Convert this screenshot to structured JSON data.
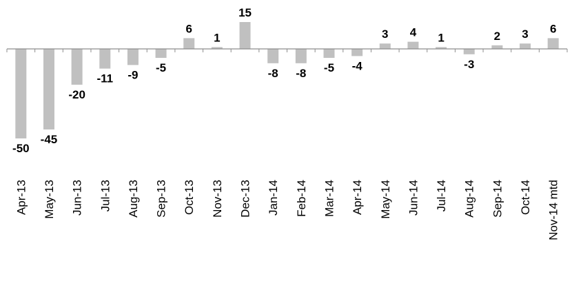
{
  "chart_data": {
    "type": "bar",
    "title": "",
    "xlabel": "",
    "ylabel": "",
    "categories": [
      "Apr-13",
      "May-13",
      "Jun-13",
      "Jul-13",
      "Aug-13",
      "Sep-13",
      "Oct-13",
      "Nov-13",
      "Dec-13",
      "Jan-14",
      "Feb-14",
      "Mar-14",
      "Apr-14",
      "May-14",
      "Jun-14",
      "Jul-14",
      "Aug-14",
      "Sep-14",
      "Oct-14",
      "Nov-14 mtd"
    ],
    "values": [
      -50,
      -45,
      -20,
      -11,
      -9,
      -5,
      6,
      1,
      15,
      -8,
      -8,
      -5,
      -4,
      3,
      4,
      1,
      -3,
      2,
      3,
      6
    ],
    "data_labels": [
      "-50",
      "-45",
      "-20",
      "-11",
      "-9",
      "-5",
      "6",
      "1",
      "15",
      "-8",
      "-8",
      "-5",
      "-4",
      "3",
      "4",
      "1",
      "-3",
      "2",
      "3",
      "6"
    ],
    "ylim": [
      -50,
      15
    ],
    "grid": false,
    "legend": "none",
    "bar_color": "#c0c0c0"
  }
}
